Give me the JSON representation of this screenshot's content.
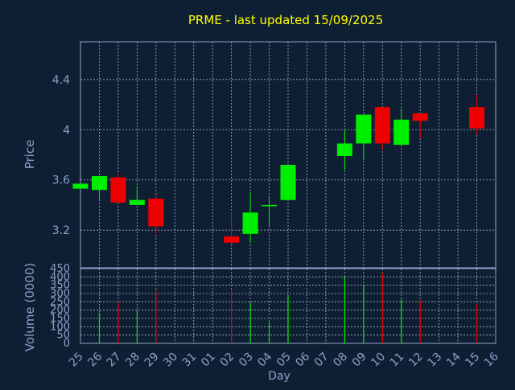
{
  "title": "PRME - last updated 15/09/2025",
  "colors": {
    "background": "#0f1f33",
    "up": "#00ee00",
    "down": "#ee0000",
    "text": "#8aa0c8",
    "title": "#ffff00",
    "grid": "#a7b3c8"
  },
  "chart_data": [
    {
      "type": "candlestick",
      "ylabel": "Price",
      "ylim": [
        2.9,
        4.7
      ],
      "yticks": [
        3.2,
        3.6,
        4,
        4.4
      ],
      "ytick_labels": [
        "3.2",
        "3.6",
        "4",
        "4.4"
      ],
      "grid": true,
      "x": [
        "25",
        "26",
        "27",
        "28",
        "29",
        "30",
        "31",
        "01",
        "02",
        "03",
        "04",
        "05",
        "06",
        "07",
        "08",
        "09",
        "10",
        "11",
        "12",
        "13",
        "14",
        "15",
        "16"
      ],
      "candles": [
        {
          "x": "25",
          "open": 3.53,
          "close": 3.57,
          "high": 3.57,
          "low": 3.53
        },
        {
          "x": "26",
          "open": 3.52,
          "close": 3.63,
          "high": 3.63,
          "low": 3.44
        },
        {
          "x": "27",
          "open": 3.62,
          "close": 3.42,
          "high": 3.66,
          "low": 3.42
        },
        {
          "x": "28",
          "open": 3.4,
          "close": 3.44,
          "high": 3.55,
          "low": 3.4
        },
        {
          "x": "29",
          "open": 3.45,
          "close": 3.23,
          "high": 3.48,
          "low": 3.17
        },
        {
          "x": "02",
          "open": 3.15,
          "close": 3.1,
          "high": 3.34,
          "low": 3.08
        },
        {
          "x": "03",
          "open": 3.17,
          "close": 3.34,
          "high": 3.5,
          "low": 3.1
        },
        {
          "x": "04",
          "open": 3.4,
          "close": 3.4,
          "high": 3.46,
          "low": 3.24
        },
        {
          "x": "05",
          "open": 3.44,
          "close": 3.72,
          "high": 3.72,
          "low": 3.44
        },
        {
          "x": "08",
          "open": 3.79,
          "close": 3.89,
          "high": 4.0,
          "low": 3.68
        },
        {
          "x": "09",
          "open": 3.89,
          "close": 4.12,
          "high": 4.12,
          "low": 3.76
        },
        {
          "x": "10",
          "open": 4.18,
          "close": 3.89,
          "high": 4.18,
          "low": 3.84
        },
        {
          "x": "11",
          "open": 3.88,
          "close": 4.08,
          "high": 4.17,
          "low": 3.88
        },
        {
          "x": "12",
          "open": 4.13,
          "close": 4.07,
          "high": 4.13,
          "low": 3.93
        },
        {
          "x": "15",
          "open": 4.18,
          "close": 4.01,
          "high": 4.28,
          "low": 3.96
        }
      ]
    },
    {
      "type": "bar",
      "xlabel": "Day",
      "ylabel": "Volume (0000)",
      "ylim": [
        0,
        450
      ],
      "yticks": [
        0,
        50,
        100,
        150,
        200,
        250,
        300,
        350,
        400,
        450
      ],
      "ytick_labels": [
        "0",
        "50",
        "100",
        "150",
        "200",
        "250",
        "300",
        "350",
        "400",
        "450"
      ],
      "grid": true,
      "categories": [
        "25",
        "26",
        "27",
        "28",
        "29",
        "30",
        "31",
        "01",
        "02",
        "03",
        "04",
        "05",
        "06",
        "07",
        "08",
        "09",
        "10",
        "11",
        "12",
        "13",
        "14",
        "15",
        "16"
      ],
      "bars": [
        {
          "x": "26",
          "value": 185,
          "dir": "up"
        },
        {
          "x": "27",
          "value": 255,
          "dir": "down"
        },
        {
          "x": "28",
          "value": 200,
          "dir": "up"
        },
        {
          "x": "29",
          "value": 320,
          "dir": "down"
        },
        {
          "x": "02",
          "value": 320,
          "dir": "down"
        },
        {
          "x": "03",
          "value": 245,
          "dir": "up"
        },
        {
          "x": "04",
          "value": 125,
          "dir": "up"
        },
        {
          "x": "05",
          "value": 285,
          "dir": "up"
        },
        {
          "x": "08",
          "value": 400,
          "dir": "up"
        },
        {
          "x": "09",
          "value": 355,
          "dir": "up"
        },
        {
          "x": "10",
          "value": 425,
          "dir": "down"
        },
        {
          "x": "11",
          "value": 265,
          "dir": "up"
        },
        {
          "x": "12",
          "value": 260,
          "dir": "down"
        },
        {
          "x": "15",
          "value": 240,
          "dir": "down"
        }
      ]
    }
  ]
}
